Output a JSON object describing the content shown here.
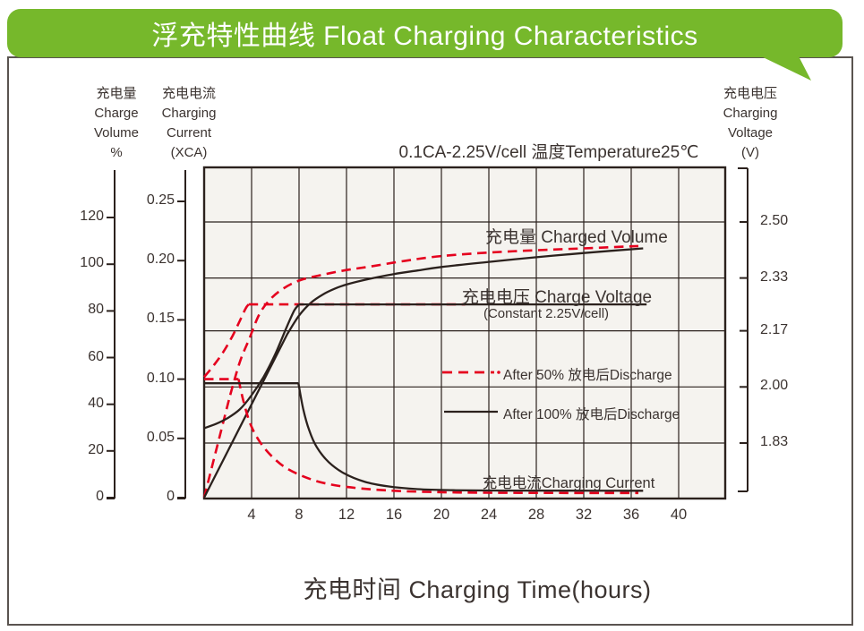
{
  "banner": {
    "title": "浮充特性曲线  Float Charging Characteristics",
    "color": "#76b82b"
  },
  "headers": {
    "volume": "充电量\nCharge\nVolume\n%",
    "current": "充电电流\nCharging\nCurrent\n(XCA)",
    "voltage": "充电电压\nCharging\nVoltage\n(V)"
  },
  "labels": {
    "charged_volume": "充电量 Charged Volume",
    "charge_voltage": "充电电压 Charge Voltage",
    "constant": "(Constant 2.25V/cell)",
    "charging_current": "充电电流Charging Current",
    "legend_50": "After 50% 放电后Discharge",
    "legend_100": "After 100% 放电后Discharge"
  },
  "x_axis_title": "充电时间  Charging Time(hours)",
  "chart_data": {
    "type": "line",
    "title": "浮充特性曲线 Float Charging Characteristics",
    "condition": "0.1CA-2.25V/cell   温度Temperature25℃",
    "x_label": "充电时间 Charging Time(hours)",
    "x_unit": "hours",
    "x_range": [
      0,
      44
    ],
    "x_ticks": [
      4,
      8,
      12,
      16,
      20,
      24,
      28,
      32,
      36,
      40
    ],
    "grid": true,
    "axes": [
      {
        "id": "volume",
        "label": "充电量 Charge Volume %",
        "tick_labels": [
          "0",
          "20",
          "40",
          "60",
          "80",
          "100",
          "120"
        ],
        "display_range": [
          0,
          141
        ]
      },
      {
        "id": "current",
        "label": "充电电流 Charging Current (XCA)",
        "tick_labels": [
          "0",
          "0.05",
          "0.10",
          "0.15",
          "0.20",
          "0.25"
        ],
        "display_range": [
          0,
          0.279
        ]
      },
      {
        "id": "voltage",
        "label": "充电电压 Charging Voltage (V)",
        "tick_labels": [
          "1.83",
          "2.00",
          "2.17",
          "2.33",
          "2.50"
        ],
        "display_range": [
          1.66,
          2.66
        ]
      }
    ],
    "legend": [
      {
        "label": "After 50% 放电后Discharge",
        "style": "dashed",
        "color": "#e5001e"
      },
      {
        "label": "After 100% 放电后Discharge",
        "style": "solid",
        "color": "#2b211d"
      }
    ],
    "series": [
      {
        "name": "charged-volume-after-50%-discharge",
        "unit": "percent",
        "color": "#e5001e",
        "style": "dashed",
        "segments": [
          {
            "smooth": false,
            "points": [
              [
                0,
                0
              ],
              [
                2.2,
                44
              ]
            ]
          },
          {
            "smooth": true,
            "points": [
              [
                2.2,
                44
              ],
              [
                3.0,
                58
              ],
              [
                3.8,
                68
              ],
              [
                4.6,
                78
              ],
              [
                5.4,
                84
              ],
              [
                6.5,
                89
              ],
              [
                8,
                93
              ],
              [
                10,
                95.5
              ],
              [
                12,
                97.5
              ],
              [
                14,
                99
              ],
              [
                17,
                101.5
              ],
              [
                20,
                103.5
              ],
              [
                24,
                105
              ],
              [
                28,
                106
              ],
              [
                32,
                106.8
              ],
              [
                36.6,
                107.8
              ]
            ]
          }
        ]
      },
      {
        "name": "charged-volume-after-100%-discharge",
        "unit": "percent",
        "color": "#2b211d",
        "style": "solid",
        "segments": [
          {
            "smooth": false,
            "points": [
              [
                0,
                0
              ],
              [
                7.0,
                70
              ]
            ]
          },
          {
            "smooth": true,
            "points": [
              [
                7,
                70
              ],
              [
                8,
                78
              ],
              [
                9,
                83.5
              ],
              [
                10,
                87
              ],
              [
                11,
                89.5
              ],
              [
                12,
                91.3
              ],
              [
                14,
                93.8
              ],
              [
                16,
                95.8
              ],
              [
                18,
                97.3
              ],
              [
                20,
                98.8
              ],
              [
                24,
                101
              ],
              [
                28,
                103
              ],
              [
                32,
                104.8
              ],
              [
                37,
                106.8
              ]
            ]
          }
        ]
      },
      {
        "name": "charge-voltage-after-50%-discharge",
        "unit": "volt",
        "color": "#e5001e",
        "style": "dashed",
        "segments": [
          {
            "smooth": true,
            "points": [
              [
                0,
                2.03
              ],
              [
                0.8,
                2.065
              ],
              [
                1.6,
                2.105
              ],
              [
                2.4,
                2.155
              ],
              [
                3.0,
                2.2
              ],
              [
                3.5,
                2.238
              ],
              [
                3.75,
                2.25
              ]
            ]
          },
          {
            "smooth": false,
            "points": [
              [
                3.75,
                2.25
              ],
              [
                22,
                2.25
              ]
            ]
          }
        ]
      },
      {
        "name": "charge-voltage-after-100%-discharge",
        "unit": "volt",
        "color": "#2b211d",
        "style": "solid",
        "constant_value": "2.25V/cell",
        "segments": [
          {
            "smooth": true,
            "points": [
              [
                0,
                1.875
              ],
              [
                1,
                1.888
              ],
              [
                2,
                1.906
              ],
              [
                3,
                1.932
              ],
              [
                4,
                1.975
              ],
              [
                5,
                2.03
              ],
              [
                6,
                2.1
              ],
              [
                7,
                2.185
              ],
              [
                7.6,
                2.232
              ],
              [
                8,
                2.25
              ]
            ]
          },
          {
            "smooth": false,
            "points": [
              [
                8,
                2.25
              ],
              [
                37.3,
                2.25
              ]
            ]
          }
        ]
      },
      {
        "name": "charging-current-after-50%-discharge",
        "unit": "xca",
        "color": "#e5001e",
        "style": "dashed",
        "segments": [
          {
            "smooth": false,
            "points": [
              [
                0,
                0.1
              ],
              [
                2.9,
                0.1
              ]
            ]
          },
          {
            "smooth": true,
            "points": [
              [
                2.9,
                0.1
              ],
              [
                3.3,
                0.082
              ],
              [
                3.9,
                0.062
              ],
              [
                4.7,
                0.047
              ],
              [
                5.7,
                0.035
              ],
              [
                7,
                0.0245
              ],
              [
                9,
                0.0155
              ],
              [
                11,
                0.0105
              ],
              [
                13.5,
                0.0075
              ],
              [
                16,
                0.0058
              ],
              [
                19,
                0.0048
              ],
              [
                23,
                0.0042
              ],
              [
                28,
                0.004
              ],
              [
                36.6,
                0.0039
              ]
            ]
          }
        ]
      },
      {
        "name": "charging-current-after-100%-discharge",
        "unit": "xca",
        "color": "#2b211d",
        "style": "solid",
        "segments": [
          {
            "smooth": false,
            "points": [
              [
                0,
                0.0965
              ],
              [
                7.95,
                0.0965
              ]
            ]
          },
          {
            "smooth": true,
            "points": [
              [
                7.95,
                0.0965
              ],
              [
                8.35,
                0.075
              ],
              [
                8.85,
                0.057
              ],
              [
                9.5,
                0.0425
              ],
              [
                10.5,
                0.03
              ],
              [
                11.8,
                0.0205
              ],
              [
                13.5,
                0.0135
              ],
              [
                15.5,
                0.0095
              ],
              [
                18,
                0.0072
              ],
              [
                21,
                0.0063
              ],
              [
                25,
                0.006
              ],
              [
                30,
                0.0059
              ],
              [
                37,
                0.0058
              ]
            ]
          }
        ]
      }
    ]
  }
}
